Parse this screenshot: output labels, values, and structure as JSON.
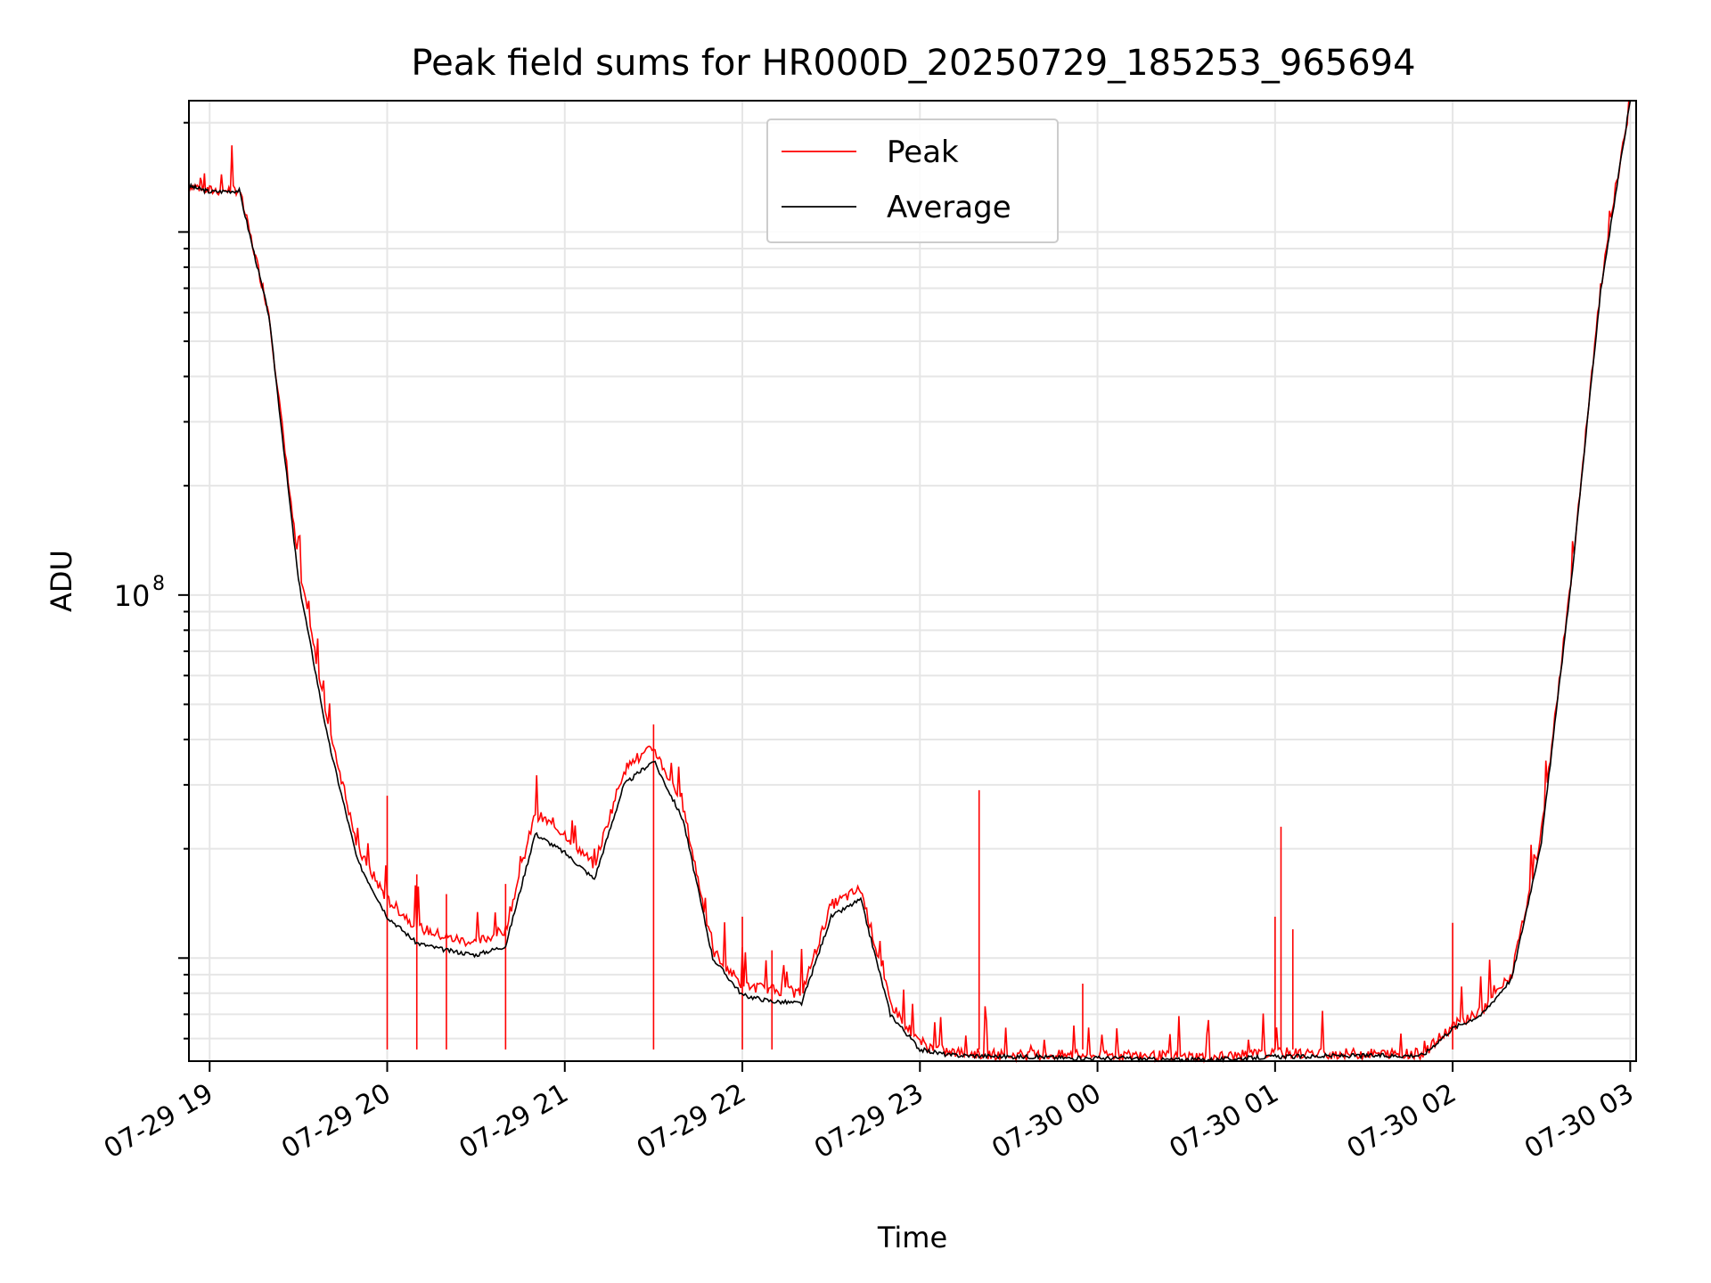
{
  "chart_data": {
    "type": "line",
    "title": "Peak field sums for HR000D_20250729_185253_965694",
    "xlabel": "Time",
    "ylabel": "ADU",
    "y_scale": "log",
    "ylim": [
      5200000,
      2300000000
    ],
    "xlim": [
      "2025-07-29 18:53",
      "2025-07-30 03:02"
    ],
    "grid": true,
    "legend_position": "top-center",
    "x_tick_labels": [
      "07-29 19",
      "07-29 20",
      "07-29 21",
      "07-29 22",
      "07-29 23",
      "07-30 00",
      "07-30 01",
      "07-30 02",
      "07-30 03"
    ],
    "x_tick_times": [
      "2025-07-29 19:00",
      "2025-07-29 20:00",
      "2025-07-29 21:00",
      "2025-07-29 22:00",
      "2025-07-29 23:00",
      "2025-07-30 00:00",
      "2025-07-30 01:00",
      "2025-07-30 02:00",
      "2025-07-30 03:00"
    ],
    "y_tick_labels": [
      {
        "base": "10",
        "exp": "8",
        "value": 100000000
      }
    ],
    "series": [
      {
        "name": "Peak",
        "color": "#ff0000",
        "x": [
          "2025-07-29 18:53",
          "2025-07-29 19:00",
          "2025-07-29 19:10",
          "2025-07-29 19:20",
          "2025-07-29 19:30",
          "2025-07-29 19:40",
          "2025-07-29 19:50",
          "2025-07-29 20:00",
          "2025-07-29 20:10",
          "2025-07-29 20:20",
          "2025-07-29 20:30",
          "2025-07-29 20:40",
          "2025-07-29 20:50",
          "2025-07-29 21:00",
          "2025-07-29 21:10",
          "2025-07-29 21:20",
          "2025-07-29 21:30",
          "2025-07-29 21:40",
          "2025-07-29 21:50",
          "2025-07-29 22:00",
          "2025-07-29 22:10",
          "2025-07-29 22:20",
          "2025-07-29 22:30",
          "2025-07-29 22:40",
          "2025-07-29 22:50",
          "2025-07-29 23:00",
          "2025-07-29 23:10",
          "2025-07-29 23:20",
          "2025-07-29 23:30",
          "2025-07-29 23:40",
          "2025-07-29 23:50",
          "2025-07-30 00:00",
          "2025-07-30 00:10",
          "2025-07-30 00:20",
          "2025-07-30 00:30",
          "2025-07-30 00:40",
          "2025-07-30 00:50",
          "2025-07-30 01:00",
          "2025-07-30 01:10",
          "2025-07-30 01:20",
          "2025-07-30 01:30",
          "2025-07-30 01:40",
          "2025-07-30 01:50",
          "2025-07-30 02:00",
          "2025-07-30 02:10",
          "2025-07-30 02:20",
          "2025-07-30 02:30",
          "2025-07-30 02:40",
          "2025-07-30 02:50",
          "2025-07-30 03:00"
        ],
        "y": [
          1350000000,
          1300000000,
          1310000000,
          600000000,
          120000000,
          45000000,
          20000000,
          14500000,
          12200000,
          11400000,
          11000000,
          12000000,
          25000000,
          22000000,
          18000000,
          33000000,
          38000000,
          26000000,
          10500000,
          8400000,
          8200000,
          8000000,
          14000000,
          15500000,
          7500000,
          5800000,
          5500000,
          5450000,
          5400000,
          5400000,
          5400000,
          5400000,
          5400000,
          5380000,
          5350000,
          5350000,
          5400000,
          5500000,
          5450000,
          5450000,
          5450000,
          5450000,
          5450000,
          6500000,
          7200000,
          9000000,
          22000000,
          110000000,
          700000000,
          2300000000
        ],
        "spikes": [
          {
            "x": "2025-07-29 20:00",
            "y": 28000000
          },
          {
            "x": "2025-07-29 20:10",
            "y": 17000000
          },
          {
            "x": "2025-07-29 20:20",
            "y": 15000000
          },
          {
            "x": "2025-07-29 20:40",
            "y": 16000000
          },
          {
            "x": "2025-07-29 21:30",
            "y": 44000000
          },
          {
            "x": "2025-07-29 22:00",
            "y": 13000000
          },
          {
            "x": "2025-07-29 22:10",
            "y": 10500000
          },
          {
            "x": "2025-07-29 23:20",
            "y": 29000000
          },
          {
            "x": "2025-07-29 23:55",
            "y": 8500000
          },
          {
            "x": "2025-07-30 01:02",
            "y": 23000000
          },
          {
            "x": "2025-07-30 01:00",
            "y": 13000000
          },
          {
            "x": "2025-07-30 01:06",
            "y": 12000000
          },
          {
            "x": "2025-07-30 02:00",
            "y": 12500000
          }
        ]
      },
      {
        "name": "Average",
        "color": "#000000",
        "x": [
          "2025-07-29 18:53",
          "2025-07-29 19:00",
          "2025-07-29 19:10",
          "2025-07-29 19:20",
          "2025-07-29 19:30",
          "2025-07-29 19:40",
          "2025-07-29 19:50",
          "2025-07-29 20:00",
          "2025-07-29 20:10",
          "2025-07-29 20:20",
          "2025-07-29 20:30",
          "2025-07-29 20:40",
          "2025-07-29 20:50",
          "2025-07-29 21:00",
          "2025-07-29 21:10",
          "2025-07-29 21:20",
          "2025-07-29 21:30",
          "2025-07-29 21:40",
          "2025-07-29 21:50",
          "2025-07-29 22:00",
          "2025-07-29 22:10",
          "2025-07-29 22:20",
          "2025-07-29 22:30",
          "2025-07-29 22:40",
          "2025-07-29 22:50",
          "2025-07-29 23:00",
          "2025-07-29 23:10",
          "2025-07-29 23:20",
          "2025-07-29 23:30",
          "2025-07-29 23:40",
          "2025-07-29 23:50",
          "2025-07-30 00:00",
          "2025-07-30 00:10",
          "2025-07-30 00:20",
          "2025-07-30 00:30",
          "2025-07-30 00:40",
          "2025-07-30 00:50",
          "2025-07-30 01:00",
          "2025-07-30 01:10",
          "2025-07-30 01:20",
          "2025-07-30 01:30",
          "2025-07-30 01:40",
          "2025-07-30 01:50",
          "2025-07-30 02:00",
          "2025-07-30 02:10",
          "2025-07-30 02:20",
          "2025-07-30 02:30",
          "2025-07-30 02:40",
          "2025-07-30 02:50",
          "2025-07-30 03:00"
        ],
        "y": [
          1340000000,
          1290000000,
          1300000000,
          590000000,
          110000000,
          40000000,
          18500000,
          13000000,
          11000000,
          10500000,
          10200000,
          10800000,
          22000000,
          19500000,
          16500000,
          30000000,
          35000000,
          24000000,
          10000000,
          7900000,
          7600000,
          7500000,
          13000000,
          14500000,
          7000000,
          5600000,
          5400000,
          5380000,
          5350000,
          5350000,
          5300000,
          5300000,
          5300000,
          5250000,
          5250000,
          5250000,
          5300000,
          5350000,
          5350000,
          5380000,
          5380000,
          5380000,
          5400000,
          6400000,
          7000000,
          8800000,
          21000000,
          108000000,
          690000000,
          2300000000
        ]
      }
    ]
  }
}
